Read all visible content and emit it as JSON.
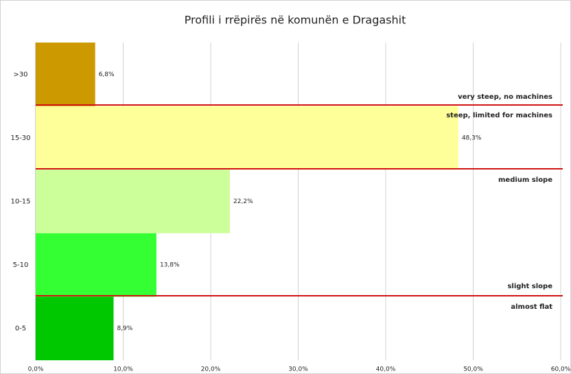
{
  "chart_data": {
    "type": "barh",
    "title": "Profili i rrëpirës në komunën e Dragashit",
    "categories": [
      "0-5",
      "5-10",
      "10-15",
      "15-30",
      ">30"
    ],
    "values": [
      8.9,
      13.8,
      22.2,
      48.3,
      6.8
    ],
    "value_labels": [
      "8,9%",
      "13,8%",
      "22,2%",
      "48,3%",
      "6,8%"
    ],
    "colors": [
      "#00c800",
      "#33ff33",
      "#ccff99",
      "#ffff99",
      "#cc9900"
    ],
    "xlim": [
      0,
      60
    ],
    "xticks": [
      {
        "value": 0,
        "label": "0,0%"
      },
      {
        "value": 10,
        "label": "10,0%"
      },
      {
        "value": 20,
        "label": "20,0%"
      },
      {
        "value": 30,
        "label": "30,0%"
      },
      {
        "value": 40,
        "label": "40,0%"
      },
      {
        "value": 50,
        "label": "50,0%"
      },
      {
        "value": 60,
        "label": "60,0%"
      }
    ],
    "grid": true,
    "annotations": [
      "very steep, no machines",
      "steep, limited for machines",
      "medium slope",
      "slight slope",
      "almost flat"
    ]
  }
}
